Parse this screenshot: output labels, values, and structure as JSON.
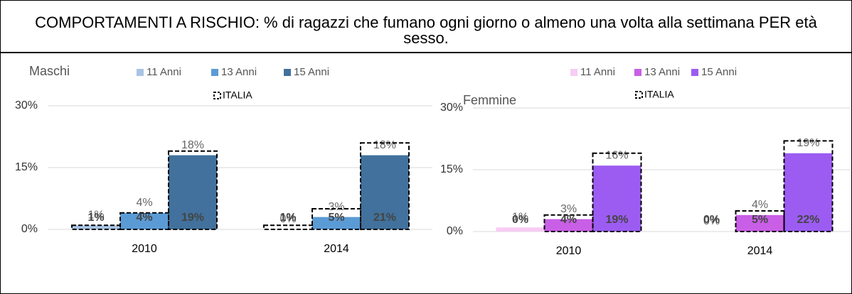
{
  "title": "COMPORTAMENTI A RISCHIO: % di ragazzi  che fumano ogni giorno o almeno una volta alla settimana PER età sesso.",
  "chart_data": [
    {
      "type": "bar",
      "title": "Maschi",
      "categories": [
        "2010",
        "2014"
      ],
      "series": [
        {
          "name": "11 Anni",
          "color": "#a9c4e4",
          "values": [
            1,
            0
          ],
          "value_labels": [
            "1%",
            "0%"
          ]
        },
        {
          "name": "13 Anni",
          "color": "#5b9bd5",
          "values": [
            4,
            3
          ],
          "value_labels": [
            "4%",
            "3%"
          ]
        },
        {
          "name": "15 Anni",
          "color": "#41719c",
          "values": [
            18,
            18
          ],
          "value_labels": [
            "18%",
            "18%"
          ]
        },
        {
          "name": "ITALIA",
          "style": "dashed",
          "values": [
            [
              1,
              4,
              19
            ],
            [
              1,
              5,
              21
            ]
          ],
          "value_labels": [
            [
              "1%",
              "4%",
              "19%"
            ],
            [
              "1%",
              "5%",
              "21%"
            ]
          ]
        }
      ],
      "ylim": [
        0,
        30
      ],
      "yticks": [
        {
          "value": 0,
          "label": "0%"
        },
        {
          "value": 15,
          "label": "15%"
        },
        {
          "value": 30,
          "label": "30%"
        }
      ],
      "grid": true
    },
    {
      "type": "bar",
      "title": "Femmine",
      "categories": [
        "2010",
        "2014"
      ],
      "series": [
        {
          "name": "11 Anni",
          "color": "#f7cdf3",
          "values": [
            1,
            0
          ],
          "value_labels": [
            "1%",
            "0%"
          ]
        },
        {
          "name": "13 Anni",
          "color": "#c95fe6",
          "values": [
            3,
            4
          ],
          "value_labels": [
            "3%",
            "4%"
          ]
        },
        {
          "name": "15 Anni",
          "color": "#9c5cf2",
          "values": [
            16,
            19
          ],
          "value_labels": [
            "16%",
            "19%"
          ]
        },
        {
          "name": "ITALIA",
          "style": "dashed",
          "values": [
            [
              0,
              4,
              19
            ],
            [
              0,
              5,
              22
            ]
          ],
          "value_labels": [
            [
              "0%",
              "4%",
              "19%"
            ],
            [
              "0%",
              "5%",
              "22%"
            ]
          ]
        }
      ],
      "ylim": [
        0,
        30
      ],
      "yticks": [
        {
          "value": 0,
          "label": "0%"
        },
        {
          "value": 15,
          "label": "15%"
        },
        {
          "value": 30,
          "label": "30%"
        }
      ],
      "grid": true
    }
  ]
}
